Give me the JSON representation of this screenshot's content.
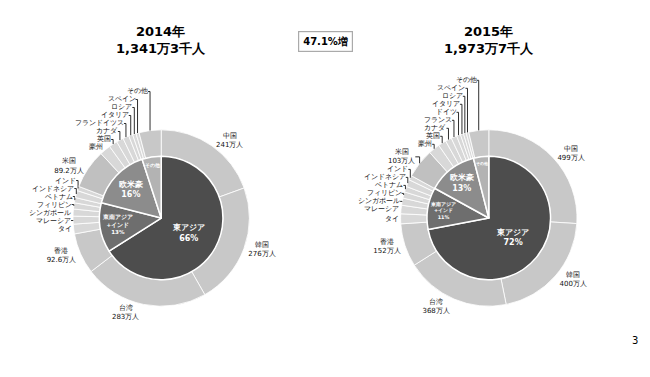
{
  "chart_data": [
    {
      "type": "pie",
      "title": "2014年\n1,341万3千人",
      "series": [
        {
          "categories": [
            "東アジア\n66%",
            "東南アジア\n+インド\n13%",
            "欧米豪\n16%",
            "その他"
          ],
          "values": [
            66,
            13,
            16,
            5
          ],
          "colors": [
            "#4d4d4d",
            "#6e6e6e",
            "#8c8c8c",
            "#b3b3b3"
          ]
        },
        {
          "categories": [
            "中国\n241万人",
            "韓国\n276万人",
            "台湾\n283万人",
            "香港\n92.6万人",
            "タイ",
            "マレーシア",
            "シンガポール",
            "フィリピン",
            "ベトナム",
            "インドネシア",
            "インド",
            "米国\n89.2万人",
            "豪州",
            "英国",
            "カナダ",
            "フランドイツス",
            "イタリア",
            "ロシア",
            "スペイン",
            "その他"
          ],
          "values": [
            241,
            276,
            283,
            92.6,
            22,
            18,
            16,
            14,
            12,
            16,
            10,
            89.2,
            25,
            19,
            16,
            14,
            9,
            8,
            7,
            50
          ],
          "colors": [
            "#c8c8c8",
            "#c8c8c8",
            "#c8c8c8",
            "#c8c8c8",
            "#d8d8d8",
            "#d8d8d8",
            "#d8d8d8",
            "#d8d8d8",
            "#d8d8d8",
            "#d8d8d8",
            "#d8d8d8",
            "#c0c0c0",
            "#d8d8d8",
            "#d8d8d8",
            "#d8d8d8",
            "#d8d8d8",
            "#d8d8d8",
            "#d8d8d8",
            "#d8d8d8",
            "#c8c8c8"
          ]
        }
      ]
    },
    {
      "type": "pie",
      "title": "2015年\n1,973万7千人",
      "series": [
        {
          "categories": [
            "東アジア\n72%",
            "東南アジア\n+インド\n11%",
            "欧米豪\n13%",
            "その他"
          ],
          "values": [
            72,
            11,
            13,
            4
          ],
          "colors": [
            "#4d4d4d",
            "#6e6e6e",
            "#8c8c8c",
            "#b3b3b3"
          ]
        },
        {
          "categories": [
            "中国\n499万人",
            "韓国\n400万人",
            "台湾\n368万人",
            "香港\n152万人",
            "タイ",
            "マレーシア",
            "シンガポール",
            "フィリピン",
            "ベトナム",
            "インドネシア",
            "インド",
            "米国\n103万人",
            "豪州",
            "英国",
            "カナダ",
            "フランス",
            "ドイツ",
            "イタリア",
            "ロシア",
            "スペイン",
            "その他"
          ],
          "values": [
            499,
            400,
            368,
            152,
            35,
            30,
            25,
            22,
            20,
            25,
            16,
            103,
            40,
            28,
            22,
            20,
            14,
            11,
            10,
            9,
            70
          ],
          "colors": [
            "#c8c8c8",
            "#c8c8c8",
            "#c8c8c8",
            "#c8c8c8",
            "#d8d8d8",
            "#d8d8d8",
            "#d8d8d8",
            "#d8d8d8",
            "#d8d8d8",
            "#d8d8d8",
            "#d8d8d8",
            "#c0c0c0",
            "#d8d8d8",
            "#d8d8d8",
            "#d8d8d8",
            "#d8d8d8",
            "#d8d8d8",
            "#d8d8d8",
            "#d8d8d8",
            "#d8d8d8",
            "#c8c8c8"
          ]
        }
      ]
    }
  ],
  "annotations": [
    "47.1%増",
    "3"
  ]
}
